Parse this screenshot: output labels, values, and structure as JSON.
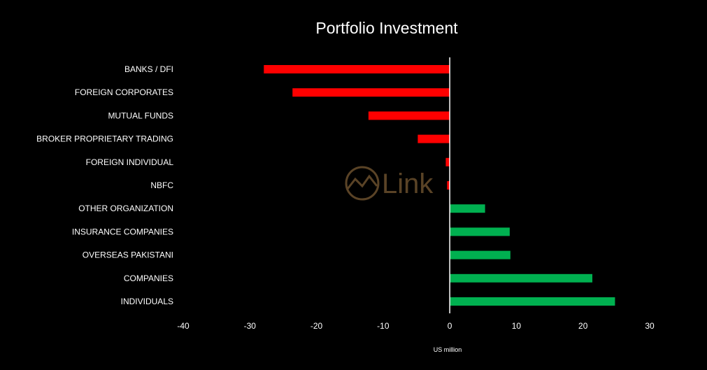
{
  "chart_data": {
    "type": "bar",
    "orientation": "horizontal",
    "title": "Portfolio Investment",
    "xlabel": "US million",
    "ylabel": "",
    "xlim": [
      -40,
      30
    ],
    "xticks": [
      "-40",
      "-30",
      "-20",
      "-10",
      "0",
      "10",
      "20",
      "30"
    ],
    "categories": [
      "BANKS / DFI",
      "FOREIGN CORPORATES",
      "MUTUAL FUNDS",
      "BROKER PROPRIETARY TRADING",
      "FOREIGN INDIVIDUAL",
      "NBFC",
      "OTHER ORGANIZATION",
      "INSURANCE COMPANIES",
      "OVERSEAS PAKISTANI",
      "COMPANIES",
      "INDIVIDUALS"
    ],
    "values": [
      -27.9,
      -23.6,
      -12.2,
      -4.8,
      -0.6,
      -0.4,
      5.3,
      9.0,
      9.1,
      21.4,
      24.8
    ],
    "grid": false,
    "legend": "none",
    "colors": {
      "negative": "#ff0000",
      "positive": "#00b050",
      "zero_line": "#ffffff",
      "background": "#000000"
    }
  },
  "watermark": {
    "text": "Link",
    "icon": "clink-logo-icon",
    "color": "#5a4326"
  }
}
